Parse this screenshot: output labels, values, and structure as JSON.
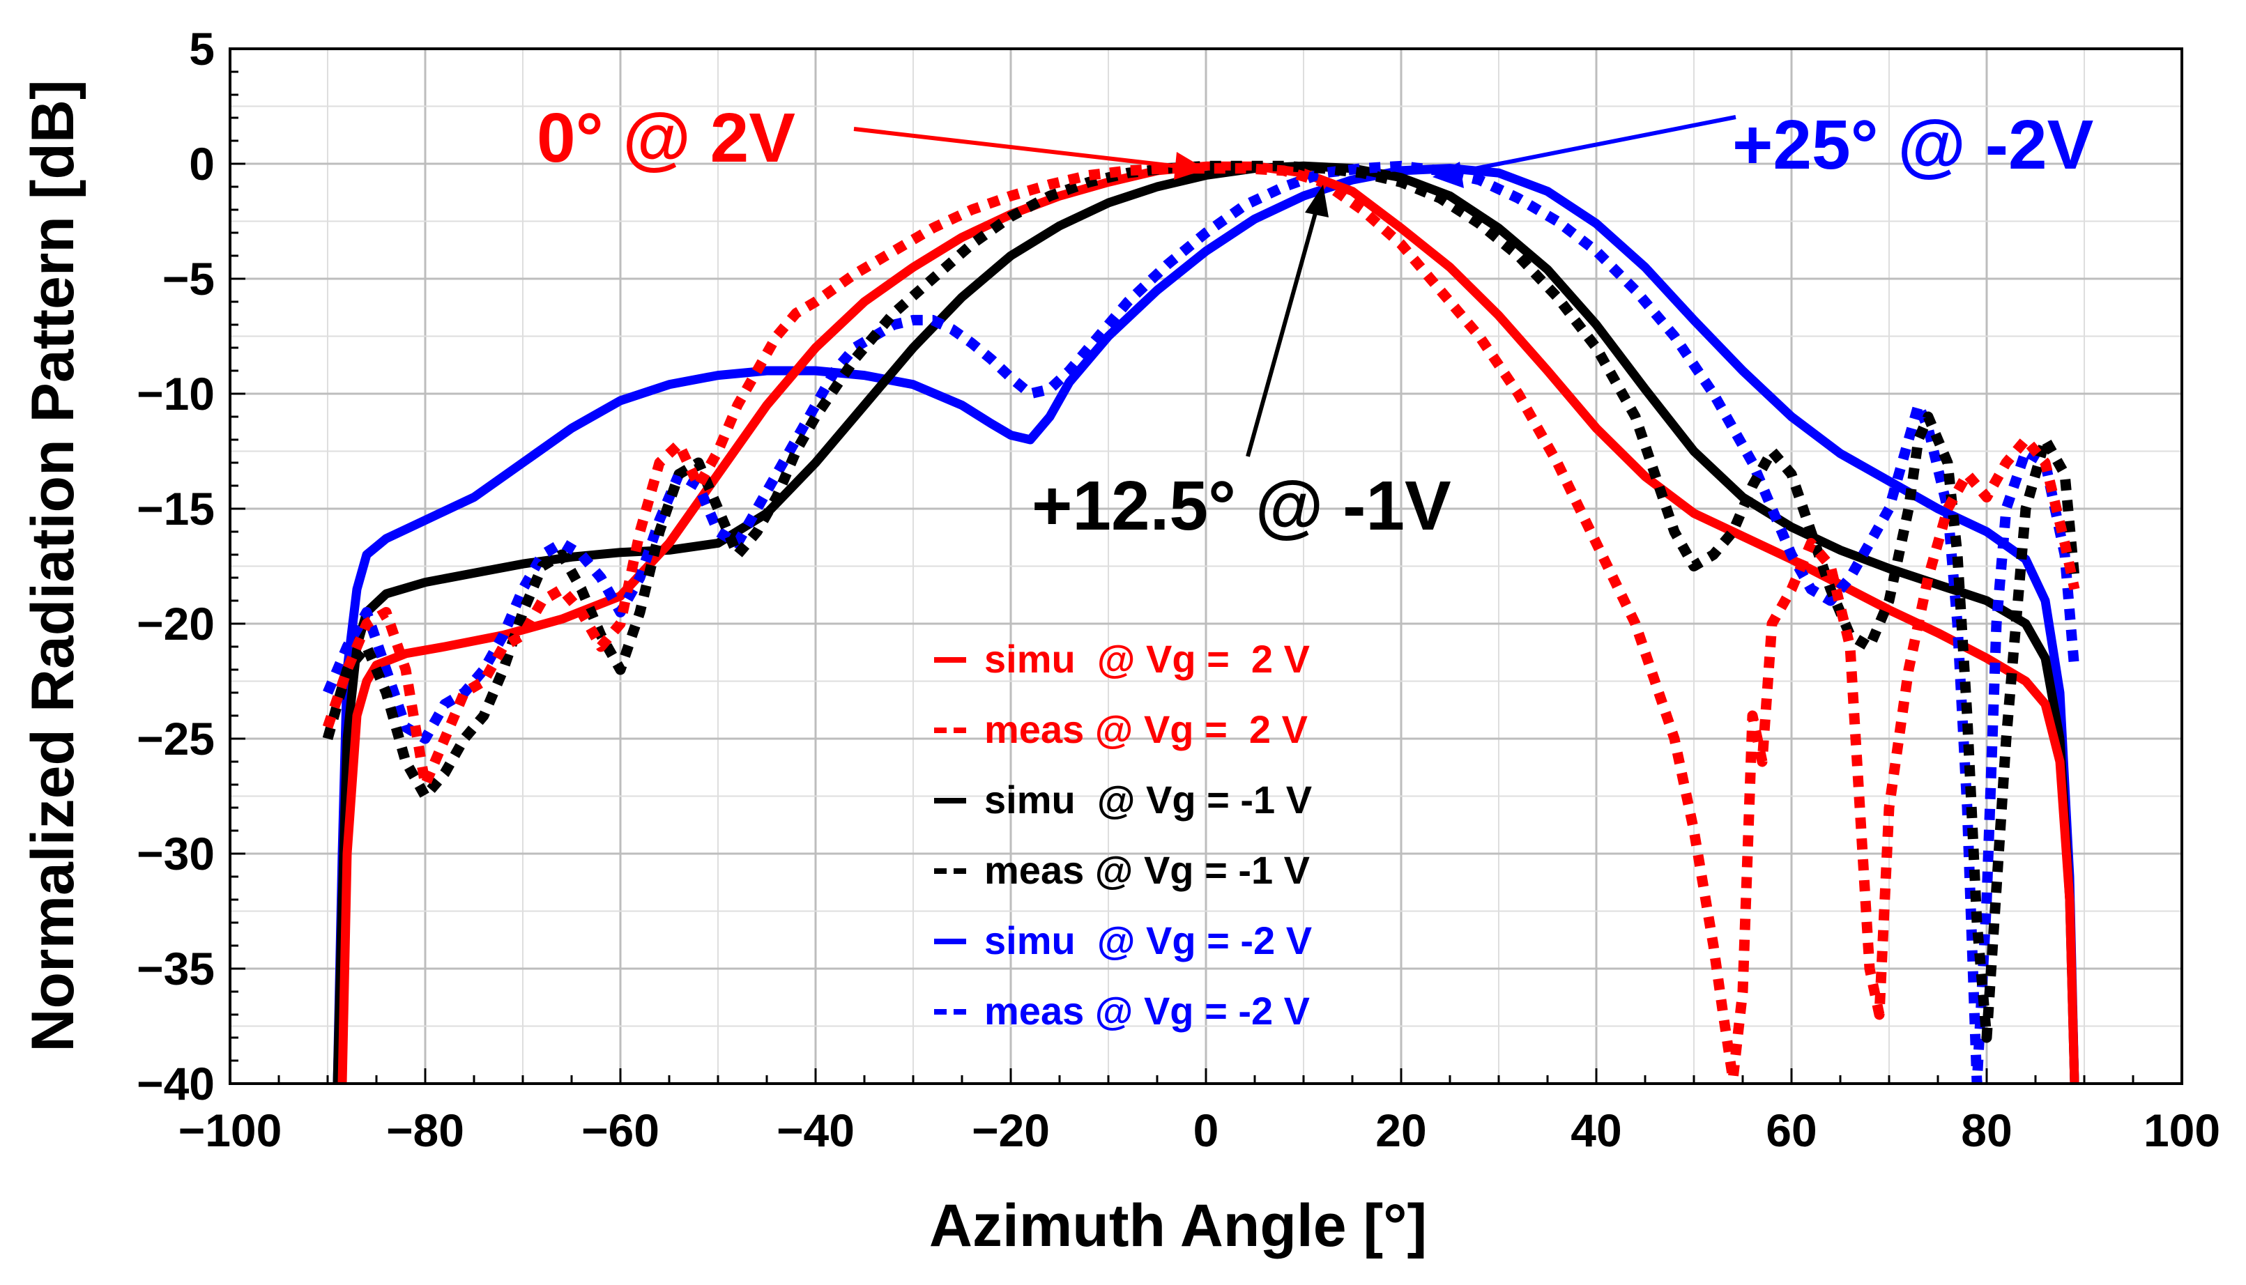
{
  "chart_data": {
    "type": "line",
    "xlabel": "Azimuth Angle [°]",
    "ylabel": "Normalized Radiation Pattern [dB]",
    "xlim": [
      -100,
      100
    ],
    "ylim": [
      -40,
      5
    ],
    "xticks": [
      -100,
      -80,
      -60,
      -40,
      -20,
      0,
      20,
      40,
      60,
      80,
      100
    ],
    "yticks": [
      5,
      0,
      -5,
      -10,
      -15,
      -20,
      -25,
      -30,
      -35,
      -40
    ],
    "xtick_labels": [
      "−100",
      "−80",
      "−60",
      "−40",
      "−20",
      "0",
      "20",
      "40",
      "60",
      "80",
      "100"
    ],
    "ytick_labels": [
      "5",
      "0",
      "−5",
      "−10",
      "−15",
      "−20",
      "−25",
      "−30",
      "−35",
      "−40"
    ],
    "grid": true,
    "legend_position": "bottom-center",
    "series": [
      {
        "name": "simu  @ Vg =  2 V",
        "color": "#ff0000",
        "style": "solid",
        "x": [
          -88.5,
          -88.0,
          -87.0,
          -86.0,
          -85.0,
          -82.0,
          -78.0,
          -72.0,
          -66.0,
          -60.0,
          -55.0,
          -50.0,
          -45.0,
          -40.0,
          -35.0,
          -30.0,
          -25.0,
          -20.0,
          -15.0,
          -10.0,
          -5.0,
          0.0,
          5.0,
          10.0,
          15.0,
          20.0,
          25.0,
          30.0,
          35.0,
          40.0,
          45.0,
          50.0,
          55.0,
          60.0,
          65.0,
          70.0,
          75.0,
          80.0,
          84.0,
          86.0,
          87.5,
          88.5,
          89.0
        ],
        "y": [
          -40.0,
          -30.0,
          -24.0,
          -22.5,
          -21.8,
          -21.3,
          -21.0,
          -20.5,
          -19.8,
          -18.8,
          -16.5,
          -13.5,
          -10.5,
          -8.0,
          -6.0,
          -4.5,
          -3.2,
          -2.2,
          -1.4,
          -0.8,
          -0.3,
          -0.1,
          -0.1,
          -0.4,
          -1.2,
          -2.8,
          -4.5,
          -6.6,
          -9.0,
          -11.5,
          -13.6,
          -15.2,
          -16.2,
          -17.2,
          -18.3,
          -19.4,
          -20.4,
          -21.5,
          -22.5,
          -23.5,
          -26.0,
          -32.0,
          -40.0
        ]
      },
      {
        "name": "meas @ Vg =  2 V",
        "color": "#ff0000",
        "style": "dashed",
        "x": [
          -90.0,
          -88.0,
          -86.0,
          -84.0,
          -82.0,
          -80.0,
          -78.0,
          -76.0,
          -74.0,
          -72.0,
          -70.0,
          -68.0,
          -66.0,
          -64.0,
          -62.0,
          -60.0,
          -58.0,
          -56.0,
          -54.0,
          -52.0,
          -50.0,
          -48.0,
          -46.0,
          -44.0,
          -42.0,
          -40.0,
          -36.0,
          -32.0,
          -28.0,
          -24.0,
          -20.0,
          -16.0,
          -12.0,
          -8.0,
          -4.0,
          0.0,
          4.0,
          8.0,
          12.0,
          16.0,
          20.0,
          24.0,
          28.0,
          32.0,
          36.0,
          40.0,
          44.0,
          48.0,
          50.0,
          52.0,
          53.0,
          54.0,
          55.0,
          56.0,
          57.0,
          58.0,
          60.0,
          62.0,
          64.0,
          66.0,
          67.0,
          68.0,
          69.0,
          70.0,
          72.0,
          74.0,
          76.0,
          78.0,
          79.0,
          80.0,
          82.0,
          84.0,
          86.0,
          88.0,
          89.0
        ],
        "y": [
          -24.5,
          -22.0,
          -20.0,
          -19.5,
          -22.0,
          -27.0,
          -25.0,
          -23.0,
          -22.5,
          -21.0,
          -20.5,
          -19.0,
          -18.5,
          -19.5,
          -21.0,
          -20.0,
          -16.0,
          -13.0,
          -12.2,
          -14.0,
          -12.5,
          -10.5,
          -9.0,
          -7.5,
          -6.5,
          -6.0,
          -4.8,
          -3.8,
          -2.8,
          -2.0,
          -1.4,
          -0.9,
          -0.5,
          -0.3,
          -0.2,
          -0.2,
          -0.2,
          -0.3,
          -0.8,
          -2.0,
          -3.5,
          -5.5,
          -7.5,
          -10.0,
          -13.0,
          -16.5,
          -20.0,
          -25.0,
          -29.0,
          -34.0,
          -37.0,
          -39.8,
          -36.0,
          -24.0,
          -26.0,
          -20.0,
          -18.5,
          -16.5,
          -17.5,
          -21.0,
          -28.0,
          -35.0,
          -37.0,
          -28.0,
          -22.0,
          -18.0,
          -15.0,
          -13.5,
          -14.0,
          -14.5,
          -13.0,
          -12.0,
          -13.0,
          -16.5,
          -18.5
        ]
      },
      {
        "name": "simu  @ Vg = -1 V",
        "color": "#000000",
        "style": "solid",
        "x": [
          -89.0,
          -88.5,
          -88.0,
          -87.0,
          -86.0,
          -84.0,
          -80.0,
          -75.0,
          -70.0,
          -65.0,
          -60.0,
          -55.0,
          -50.0,
          -45.0,
          -40.0,
          -35.0,
          -30.0,
          -25.0,
          -20.0,
          -15.0,
          -10.0,
          -5.0,
          0.0,
          5.0,
          10.0,
          15.0,
          20.0,
          25.0,
          30.0,
          35.0,
          40.0,
          45.0,
          50.0,
          55.0,
          60.0,
          65.0,
          70.0,
          75.0,
          80.0,
          84.0,
          86.0,
          87.5,
          88.5,
          89.0
        ],
        "y": [
          -40.0,
          -32.0,
          -25.0,
          -21.0,
          -19.5,
          -18.7,
          -18.2,
          -17.8,
          -17.4,
          -17.1,
          -16.9,
          -16.8,
          -16.5,
          -15.2,
          -13.0,
          -10.5,
          -8.0,
          -5.8,
          -4.0,
          -2.7,
          -1.7,
          -1.0,
          -0.5,
          -0.2,
          -0.1,
          -0.2,
          -0.6,
          -1.4,
          -2.8,
          -4.6,
          -7.0,
          -9.8,
          -12.5,
          -14.5,
          -15.8,
          -16.8,
          -17.6,
          -18.3,
          -19.0,
          -20.0,
          -21.5,
          -25.0,
          -32.0,
          -40.0
        ]
      },
      {
        "name": "meas @ Vg = -1 V",
        "color": "#000000",
        "style": "dashed",
        "x": [
          -90.0,
          -88.0,
          -86.0,
          -84.0,
          -82.0,
          -80.0,
          -78.0,
          -76.0,
          -74.0,
          -72.0,
          -70.0,
          -68.0,
          -66.0,
          -64.0,
          -62.0,
          -60.0,
          -58.0,
          -56.0,
          -54.0,
          -52.0,
          -50.0,
          -48.0,
          -46.0,
          -44.0,
          -42.0,
          -40.0,
          -36.0,
          -32.0,
          -28.0,
          -24.0,
          -20.0,
          -16.0,
          -12.0,
          -8.0,
          -4.0,
          0.0,
          4.0,
          8.0,
          12.0,
          16.0,
          20.0,
          24.0,
          28.0,
          32.0,
          36.0,
          40.0,
          44.0,
          46.0,
          48.0,
          50.0,
          52.0,
          54.0,
          56.0,
          58.0,
          60.0,
          62.0,
          64.0,
          66.0,
          68.0,
          70.0,
          72.0,
          73.0,
          74.0,
          76.0,
          77.0,
          78.0,
          79.0,
          80.0,
          82.0,
          84.0,
          86.0,
          88.0,
          89.0
        ],
        "y": [
          -25.0,
          -22.0,
          -21.0,
          -23.0,
          -26.0,
          -27.5,
          -26.5,
          -25.0,
          -24.0,
          -22.0,
          -19.5,
          -17.5,
          -17.0,
          -18.5,
          -20.5,
          -22.0,
          -19.5,
          -16.0,
          -13.5,
          -13.0,
          -15.0,
          -17.0,
          -16.0,
          -14.5,
          -12.5,
          -11.0,
          -8.5,
          -6.5,
          -5.0,
          -3.5,
          -2.3,
          -1.4,
          -0.8,
          -0.4,
          -0.2,
          -0.1,
          -0.1,
          -0.1,
          -0.2,
          -0.4,
          -0.8,
          -1.5,
          -2.6,
          -4.0,
          -5.8,
          -8.0,
          -11.0,
          -13.5,
          -16.0,
          -17.5,
          -17.0,
          -16.0,
          -14.0,
          -12.5,
          -13.5,
          -16.0,
          -18.5,
          -20.5,
          -21.0,
          -19.0,
          -15.0,
          -12.0,
          -11.0,
          -13.0,
          -17.0,
          -24.0,
          -33.0,
          -38.0,
          -25.0,
          -15.0,
          -12.0,
          -13.5,
          -18.0
        ]
      },
      {
        "name": "simu  @ Vg = -2 V",
        "color": "#0000ff",
        "style": "solid",
        "x": [
          -89.0,
          -88.5,
          -88.0,
          -87.0,
          -86.0,
          -84.0,
          -80.0,
          -75.0,
          -70.0,
          -65.0,
          -60.0,
          -55.0,
          -50.0,
          -45.0,
          -40.0,
          -35.0,
          -30.0,
          -25.0,
          -22.0,
          -20.0,
          -18.0,
          -16.0,
          -14.0,
          -10.0,
          -5.0,
          0.0,
          5.0,
          10.0,
          15.0,
          20.0,
          25.0,
          30.0,
          35.0,
          40.0,
          45.0,
          50.0,
          55.0,
          60.0,
          65.0,
          70.0,
          75.0,
          80.0,
          84.0,
          86.0,
          87.5,
          88.5,
          89.0
        ],
        "y": [
          -40.0,
          -30.0,
          -22.0,
          -18.5,
          -17.0,
          -16.3,
          -15.5,
          -14.5,
          -13.0,
          -11.5,
          -10.3,
          -9.6,
          -9.2,
          -9.0,
          -9.0,
          -9.2,
          -9.6,
          -10.5,
          -11.3,
          -11.8,
          -12.0,
          -11.0,
          -9.5,
          -7.5,
          -5.5,
          -3.8,
          -2.4,
          -1.4,
          -0.7,
          -0.3,
          -0.2,
          -0.4,
          -1.2,
          -2.6,
          -4.5,
          -6.8,
          -9.0,
          -11.0,
          -12.6,
          -13.8,
          -15.0,
          -16.0,
          -17.2,
          -19.0,
          -23.0,
          -31.0,
          -40.0
        ]
      },
      {
        "name": "meas @ Vg = -2 V",
        "color": "#0000ff",
        "style": "dashed",
        "x": [
          -90.0,
          -88.0,
          -86.0,
          -84.0,
          -82.0,
          -80.0,
          -78.0,
          -76.0,
          -74.0,
          -72.0,
          -70.0,
          -68.0,
          -66.0,
          -64.0,
          -62.0,
          -60.0,
          -58.0,
          -56.0,
          -54.0,
          -52.0,
          -50.0,
          -48.0,
          -46.0,
          -44.0,
          -42.0,
          -40.0,
          -38.0,
          -36.0,
          -34.0,
          -32.0,
          -30.0,
          -28.0,
          -26.0,
          -24.0,
          -22.0,
          -20.0,
          -18.0,
          -16.0,
          -14.0,
          -12.0,
          -10.0,
          -8.0,
          -6.0,
          -4.0,
          -2.0,
          0.0,
          4.0,
          8.0,
          12.0,
          16.0,
          20.0,
          24.0,
          28.0,
          32.0,
          36.0,
          40.0,
          44.0,
          48.0,
          52.0,
          56.0,
          58.0,
          60.0,
          62.0,
          64.0,
          66.0,
          68.0,
          70.0,
          72.0,
          73.0,
          74.0,
          76.0,
          77.0,
          78.0,
          79.0,
          80.0,
          81.0,
          82.0,
          84.0,
          86.0,
          88.0,
          89.0
        ],
        "y": [
          -23.0,
          -21.0,
          -19.5,
          -22.0,
          -24.5,
          -25.0,
          -23.5,
          -23.0,
          -22.0,
          -20.5,
          -18.5,
          -17.0,
          -16.5,
          -17.0,
          -18.0,
          -19.5,
          -18.0,
          -15.5,
          -13.5,
          -14.0,
          -16.0,
          -16.5,
          -15.0,
          -13.5,
          -12.0,
          -10.5,
          -9.0,
          -8.0,
          -7.5,
          -7.0,
          -6.8,
          -6.8,
          -7.2,
          -7.8,
          -8.5,
          -9.3,
          -10.0,
          -9.8,
          -9.0,
          -8.0,
          -7.0,
          -6.0,
          -5.2,
          -4.4,
          -3.7,
          -3.0,
          -1.8,
          -1.0,
          -0.4,
          -0.2,
          -0.1,
          -0.3,
          -0.7,
          -1.5,
          -2.5,
          -3.8,
          -5.5,
          -7.5,
          -10.0,
          -13.0,
          -15.0,
          -17.0,
          -18.5,
          -19.0,
          -18.0,
          -16.5,
          -15.0,
          -12.0,
          -10.5,
          -11.5,
          -15.0,
          -20.0,
          -28.0,
          -40.0,
          -32.0,
          -20.0,
          -15.0,
          -12.5,
          -13.0,
          -17.0,
          -22.0
        ]
      }
    ],
    "annotations": [
      {
        "text": "0° @ 2V",
        "color": "#ff0000",
        "point_x": 0,
        "point_y": 0
      },
      {
        "text": "+25° @ -2V",
        "color": "#0000ff",
        "point_x": 25,
        "point_y": 0
      },
      {
        "text": "+12.5° @ -1V",
        "color": "#000000",
        "point_x": 12.5,
        "point_y": -0.2
      }
    ]
  }
}
